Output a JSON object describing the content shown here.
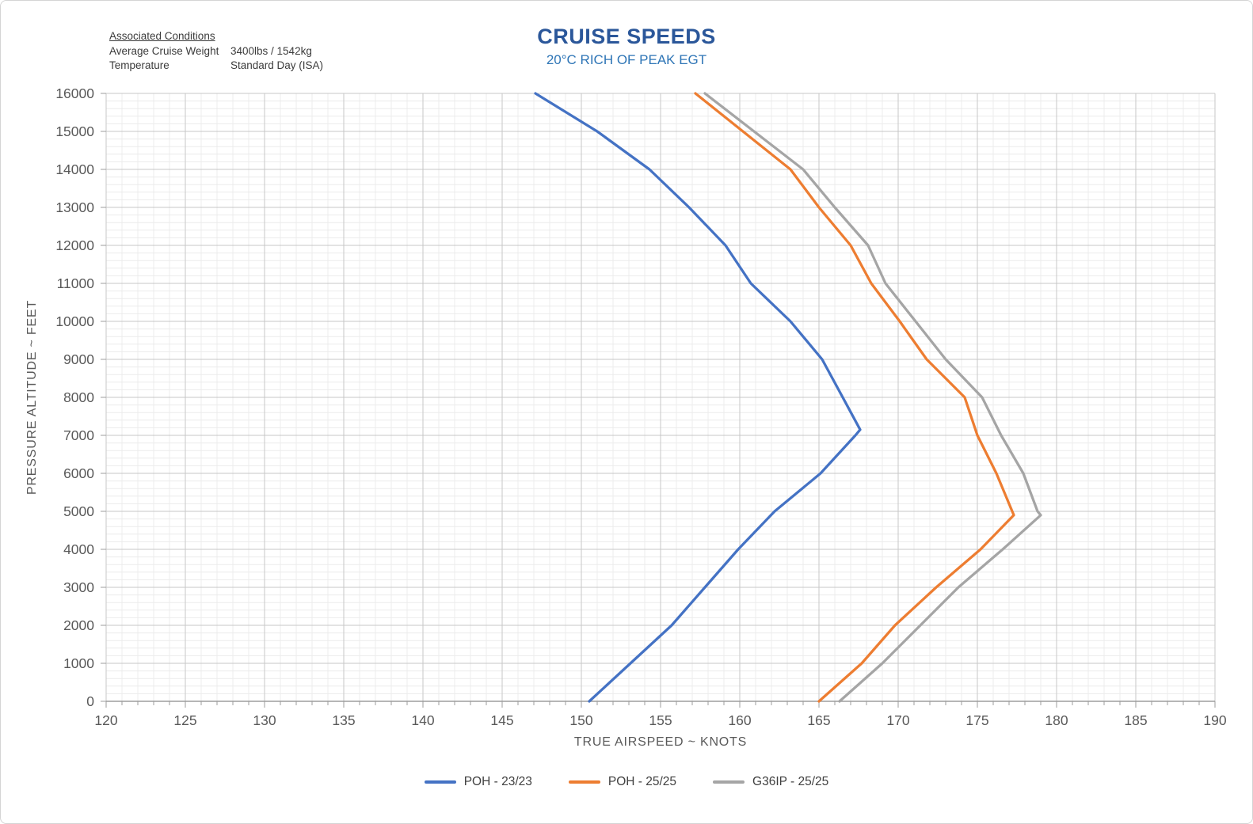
{
  "header": {
    "conditions": {
      "heading": "Associated Conditions",
      "rows": [
        {
          "label": "Average Cruise Weight",
          "value": "3400lbs / 1542kg"
        },
        {
          "label": "Temperature",
          "value": "Standard Day (ISA)"
        }
      ]
    },
    "title": "CRUISE SPEEDS",
    "subtitle": "20°C RICH OF PEAK EGT",
    "title_color": "#2B579A",
    "subtitle_color": "#2E75B6"
  },
  "chart_data": {
    "type": "line",
    "title": "CRUISE SPEEDS",
    "subtitle": "20°C RICH OF PEAK EGT",
    "xlabel": "TRUE AIRSPEED ~ KNOTS",
    "ylabel": "PRESSURE ALTITUDE ~ FEET",
    "xlim": [
      120,
      190
    ],
    "ylim": [
      0,
      16000
    ],
    "x_major_step": 5,
    "x_minor_step": 1,
    "y_major_step": 1000,
    "y_minor_step": 200,
    "grid": true,
    "legend_position": "bottom",
    "point_format": "[true_airspeed_kt, pressure_altitude_ft]",
    "series": [
      {
        "name": "POH - 23/23",
        "color": "#4472C4",
        "points": [
          [
            150.5,
            0
          ],
          [
            153.1,
            1000
          ],
          [
            155.7,
            2000
          ],
          [
            157.8,
            3000
          ],
          [
            159.9,
            4000
          ],
          [
            162.2,
            5000
          ],
          [
            165.1,
            6000
          ],
          [
            167.3,
            7000
          ],
          [
            167.6,
            7150
          ],
          [
            166.5,
            8000
          ],
          [
            165.2,
            9000
          ],
          [
            163.2,
            10000
          ],
          [
            160.7,
            11000
          ],
          [
            159.1,
            12000
          ],
          [
            156.8,
            13000
          ],
          [
            154.3,
            14000
          ],
          [
            151.0,
            15000
          ],
          [
            147.1,
            16000
          ]
        ]
      },
      {
        "name": "POH - 25/25",
        "color": "#ED7D31",
        "points": [
          [
            165.0,
            0
          ],
          [
            167.7,
            1000
          ],
          [
            169.8,
            2000
          ],
          [
            172.4,
            3000
          ],
          [
            175.2,
            4000
          ],
          [
            177.3,
            4900
          ],
          [
            177.2,
            5000
          ],
          [
            176.2,
            6000
          ],
          [
            175.0,
            7000
          ],
          [
            174.2,
            8000
          ],
          [
            171.8,
            9000
          ],
          [
            170.1,
            10000
          ],
          [
            168.3,
            11000
          ],
          [
            167.0,
            12000
          ],
          [
            165.0,
            13000
          ],
          [
            163.2,
            14000
          ],
          [
            160.2,
            15000
          ],
          [
            157.2,
            16000
          ]
        ]
      },
      {
        "name": "G36IP - 25/25",
        "color": "#A5A5A5",
        "points": [
          [
            166.3,
            0
          ],
          [
            169.0,
            1000
          ],
          [
            171.4,
            2000
          ],
          [
            173.8,
            3000
          ],
          [
            176.6,
            4000
          ],
          [
            179.0,
            4900
          ],
          [
            178.8,
            5000
          ],
          [
            177.9,
            6000
          ],
          [
            176.5,
            7000
          ],
          [
            175.3,
            8000
          ],
          [
            173.0,
            9000
          ],
          [
            171.1,
            10000
          ],
          [
            169.2,
            11000
          ],
          [
            168.1,
            12000
          ],
          [
            166.0,
            13000
          ],
          [
            164.0,
            14000
          ],
          [
            160.9,
            15000
          ],
          [
            157.8,
            16000
          ]
        ]
      }
    ],
    "style": {
      "minor_grid_color": "#ececec",
      "major_grid_color": "#c7c7c7",
      "axis_line_color": "#9d9d9d",
      "tick_label_color": "#595959",
      "axis_title_color": "#595959",
      "line_width": 3.25
    }
  }
}
